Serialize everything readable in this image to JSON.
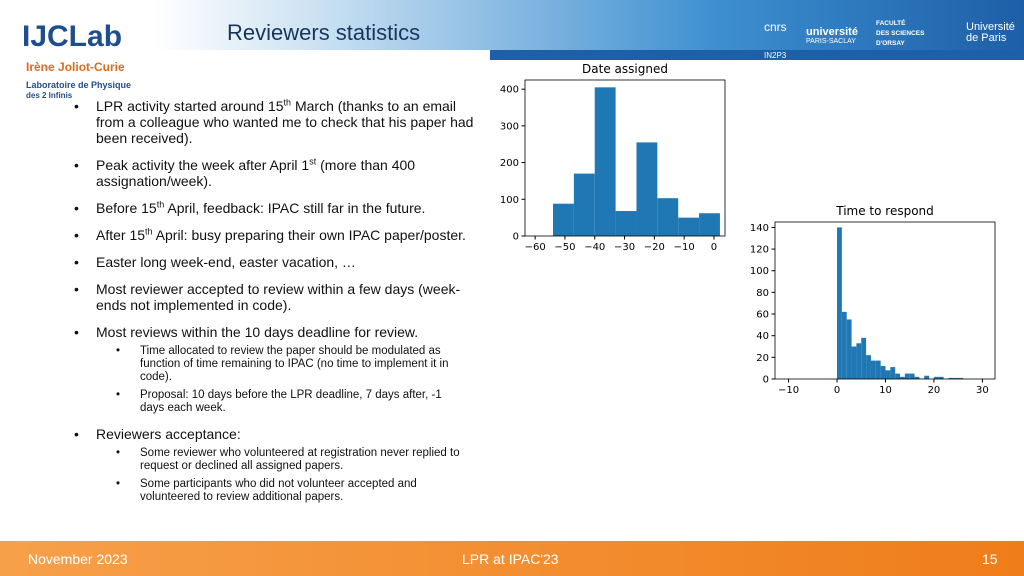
{
  "header": {
    "title": "Reviewers statistics"
  },
  "logos": {
    "lab": "IJCLab",
    "lab_name": "Irène Joliot-Curie",
    "lab_sub1": "Laboratoire de Physique",
    "lab_sub2": "des 2 Infinis",
    "cnrs": "cnrs",
    "in2p3": "IN2P3",
    "saclay1": "université",
    "saclay2": "PARIS-SACLAY",
    "faculty1": "FACULTÉ",
    "faculty2": "DES SCIENCES",
    "faculty3": "D'ORSAY",
    "paris1": "Université",
    "paris2": "de Paris"
  },
  "bullets": [
    {
      "parts": [
        "LPR activity started around 15",
        "th",
        " March (thanks to an email from a colleague who wanted me to check that his paper had been received)."
      ]
    },
    {
      "parts": [
        "Peak activity the week after April 1",
        "st",
        " (more than 400 assignation/week)."
      ]
    },
    {
      "parts": [
        "Before 15",
        "th",
        " April, feedback: IPAC still far in the future."
      ]
    },
    {
      "parts": [
        "After 15",
        "th",
        " April: busy preparing their own IPAC paper/poster."
      ]
    },
    {
      "parts": [
        "Easter long week-end, easter vacation, …"
      ]
    },
    {
      "parts": [
        "Most reviewer accepted to review within a few days (week-ends not implemented in code)."
      ]
    },
    {
      "parts": [
        "Most reviews within the 10 days deadline for review."
      ],
      "sub": [
        "Time allocated to review the paper should be modulated as function of time remaining to IPAC (no time to implement it in code).",
        "Proposal: 10 days before the LPR deadline, 7 days after, -1 days each week."
      ]
    },
    {
      "parts": [
        "Reviewers acceptance:"
      ],
      "sub": [
        "Some reviewer who volunteered at registration never replied to request or declined all assigned papers.",
        "Some participants who did not volunteer accepted and volunteered to review additional papers."
      ]
    }
  ],
  "footer": {
    "date": "November 2023",
    "event": "LPR at IPAC'23",
    "page": "15"
  },
  "chart_data": [
    {
      "type": "histogram",
      "title": "Date assigned",
      "color": "#1f77b4",
      "bins": [
        -54,
        -47,
        -40,
        -33,
        -26,
        -19,
        -12,
        -5,
        2
      ],
      "values": [
        88,
        170,
        405,
        68,
        255,
        103,
        50,
        62
      ],
      "xlim": [
        -63.4,
        3.7
      ],
      "ylim": [
        0,
        425
      ],
      "xticks": [
        {
          "value": -60,
          "label": "−60"
        },
        {
          "value": -50,
          "label": "−50"
        },
        {
          "value": -40,
          "label": "−40"
        },
        {
          "value": -30,
          "label": "−30"
        },
        {
          "value": -20,
          "label": "−20"
        },
        {
          "value": -10,
          "label": "−10"
        },
        0
      ],
      "yticks": [
        0,
        100,
        200,
        300,
        400
      ]
    },
    {
      "type": "histogram",
      "title": "Time to respond",
      "color": "#1f77b4",
      "bins": [
        0,
        1,
        2,
        3,
        4,
        5,
        6,
        7,
        8,
        9,
        10,
        11,
        12,
        13,
        14,
        15,
        16,
        17,
        18,
        19,
        20,
        21,
        22,
        23,
        24,
        25,
        26
      ],
      "values": [
        140,
        62,
        55,
        30,
        33,
        38,
        22,
        17,
        17,
        12,
        8,
        11,
        5,
        2,
        5,
        5,
        2,
        0,
        3,
        0,
        2,
        2,
        0,
        1,
        1,
        1
      ],
      "xlim": [
        -12.8,
        32.6
      ],
      "ylim": [
        0,
        145
      ],
      "xticks": [
        {
          "value": -10,
          "label": "−10"
        },
        0,
        10,
        20,
        30
      ],
      "yticks": [
        0,
        20,
        40,
        60,
        80,
        100,
        120,
        140
      ]
    }
  ]
}
